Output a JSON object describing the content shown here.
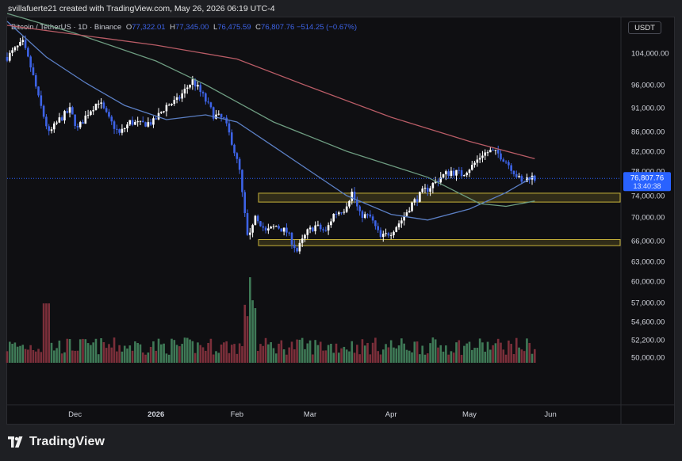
{
  "header": {
    "byline": "svillafuerte21 created with TradingView.com, May 26, 2026 06:19 UTC-4",
    "symbol_title": "Bitcoin / TetherUS · 1D · Binance",
    "ohlc": {
      "open_label": "O",
      "open": "77,322.01",
      "high_label": "H",
      "high": "77,345.00",
      "low_label": "L",
      "low": "76,475.59",
      "close_label": "C",
      "close": "76,807.76",
      "change": "−514.25 (−0.67%)"
    },
    "currency_button": "USDT"
  },
  "price_tag": {
    "price": "76,807.76",
    "countdown": "13:40:38",
    "color": "#2962ff"
  },
  "colors": {
    "up": "#ffffff",
    "down": "#3d63e6",
    "vol_up": "#3f7a57",
    "vol_down": "#7b2f3a",
    "ma_short": "#5b7fc4",
    "ma_mid": "#6d9b80",
    "ma_long": "#b95c66",
    "zone": "#c9b43a"
  },
  "brand": {
    "name": "TradingView",
    "logo_icon": "tradingview-logo-icon"
  },
  "chart_data": {
    "type": "candlestick",
    "title": "Bitcoin / TetherUS · 1D · Binance",
    "y_axis_ticks": [
      104000,
      96000,
      91000,
      86000,
      82000,
      78000,
      74000,
      70000,
      66000,
      63000,
      60000,
      57000,
      54600,
      52200,
      50000
    ],
    "y_tick_labels": [
      "104,000.00",
      "96,000.00",
      "91,000.00",
      "86,000.00",
      "82,000.00",
      "78,000.00",
      "74,000.00",
      "70,000.00",
      "66,000.00",
      "63,000.00",
      "60,000.00",
      "57,000.00",
      "54,600.00",
      "52,200.00",
      "50,000.00"
    ],
    "x_axis_labels": [
      {
        "label": "Dec",
        "date": "2025-12-01"
      },
      {
        "label": "2026",
        "date": "2026-01-01"
      },
      {
        "label": "Feb",
        "date": "2026-02-01"
      },
      {
        "label": "Mar",
        "date": "2026-03-01"
      },
      {
        "label": "Apr",
        "date": "2026-04-01"
      },
      {
        "label": "May",
        "date": "2026-05-01"
      },
      {
        "label": "Jun",
        "date": "2026-06-01"
      }
    ],
    "x_range": [
      "2025-11-05",
      "2026-06-28"
    ],
    "price_series": [
      {
        "date": "2025-11-05",
        "close": 103000
      },
      {
        "date": "2025-11-09",
        "close": 105500
      },
      {
        "date": "2025-11-11",
        "close": 106500
      },
      {
        "date": "2025-11-14",
        "close": 100500
      },
      {
        "date": "2025-11-17",
        "close": 93000
      },
      {
        "date": "2025-11-21",
        "close": 85500
      },
      {
        "date": "2025-11-25",
        "close": 88500
      },
      {
        "date": "2025-11-29",
        "close": 90500
      },
      {
        "date": "2025-12-02",
        "close": 86500
      },
      {
        "date": "2025-12-06",
        "close": 90000
      },
      {
        "date": "2025-12-10",
        "close": 92500
      },
      {
        "date": "2025-12-14",
        "close": 88500
      },
      {
        "date": "2025-12-18",
        "close": 85500
      },
      {
        "date": "2025-12-22",
        "close": 88000
      },
      {
        "date": "2025-12-26",
        "close": 87500
      },
      {
        "date": "2025-12-31",
        "close": 88000
      },
      {
        "date": "2026-01-05",
        "close": 91500
      },
      {
        "date": "2026-01-09",
        "close": 92500
      },
      {
        "date": "2026-01-13",
        "close": 95500
      },
      {
        "date": "2026-01-15",
        "close": 97000
      },
      {
        "date": "2026-01-19",
        "close": 93500
      },
      {
        "date": "2026-01-23",
        "close": 89500
      },
      {
        "date": "2026-01-27",
        "close": 88500
      },
      {
        "date": "2026-01-30",
        "close": 84000
      },
      {
        "date": "2026-02-02",
        "close": 78000
      },
      {
        "date": "2026-02-05",
        "close": 66500
      },
      {
        "date": "2026-02-08",
        "close": 70500
      },
      {
        "date": "2026-02-12",
        "close": 67500
      },
      {
        "date": "2026-02-16",
        "close": 68500
      },
      {
        "date": "2026-02-20",
        "close": 67500
      },
      {
        "date": "2026-02-24",
        "close": 64500
      },
      {
        "date": "2026-02-28",
        "close": 67500
      },
      {
        "date": "2026-03-03",
        "close": 68500
      },
      {
        "date": "2026-03-07",
        "close": 67500
      },
      {
        "date": "2026-03-10",
        "close": 70500
      },
      {
        "date": "2026-03-14",
        "close": 71500
      },
      {
        "date": "2026-03-17",
        "close": 74500
      },
      {
        "date": "2026-03-20",
        "close": 70500
      },
      {
        "date": "2026-03-24",
        "close": 70000
      },
      {
        "date": "2026-03-28",
        "close": 66500
      },
      {
        "date": "2026-04-01",
        "close": 67500
      },
      {
        "date": "2026-04-05",
        "close": 69500
      },
      {
        "date": "2026-04-09",
        "close": 72500
      },
      {
        "date": "2026-04-13",
        "close": 74500
      },
      {
        "date": "2026-04-16",
        "close": 75500
      },
      {
        "date": "2026-04-20",
        "close": 77000
      },
      {
        "date": "2026-04-24",
        "close": 78000
      },
      {
        "date": "2026-04-28",
        "close": 77500
      },
      {
        "date": "2026-05-02",
        "close": 79000
      },
      {
        "date": "2026-05-06",
        "close": 81500
      },
      {
        "date": "2026-05-09",
        "close": 82000
      },
      {
        "date": "2026-05-12",
        "close": 81500
      },
      {
        "date": "2026-05-15",
        "close": 80000
      },
      {
        "date": "2026-05-18",
        "close": 78000
      },
      {
        "date": "2026-05-21",
        "close": 76000
      },
      {
        "date": "2026-05-24",
        "close": 77200
      },
      {
        "date": "2026-05-26",
        "close": 76807.76
      }
    ],
    "moving_averages": [
      {
        "line": "short",
        "points": [
          {
            "date": "2025-11-05",
            "value": 112000
          },
          {
            "date": "2025-11-20",
            "value": 103000
          },
          {
            "date": "2025-12-05",
            "value": 96500
          },
          {
            "date": "2025-12-20",
            "value": 91500
          },
          {
            "date": "2026-01-05",
            "value": 88500
          },
          {
            "date": "2026-01-20",
            "value": 89500
          },
          {
            "date": "2026-02-01",
            "value": 88000
          },
          {
            "date": "2026-02-15",
            "value": 83000
          },
          {
            "date": "2026-03-01",
            "value": 78000
          },
          {
            "date": "2026-03-15",
            "value": 74000
          },
          {
            "date": "2026-04-01",
            "value": 70500
          },
          {
            "date": "2026-04-15",
            "value": 69500
          },
          {
            "date": "2026-05-01",
            "value": 71500
          },
          {
            "date": "2026-05-15",
            "value": 74500
          },
          {
            "date": "2026-05-26",
            "value": 77200
          }
        ]
      },
      {
        "line": "mid",
        "points": [
          {
            "date": "2025-11-05",
            "value": 114000
          },
          {
            "date": "2025-12-01",
            "value": 109000
          },
          {
            "date": "2026-01-01",
            "value": 102000
          },
          {
            "date": "2026-01-20",
            "value": 96000
          },
          {
            "date": "2026-02-15",
            "value": 88000
          },
          {
            "date": "2026-03-15",
            "value": 82000
          },
          {
            "date": "2026-04-15",
            "value": 77000
          },
          {
            "date": "2026-05-05",
            "value": 72500
          },
          {
            "date": "2026-05-15",
            "value": 72000
          },
          {
            "date": "2026-05-26",
            "value": 73000
          }
        ]
      },
      {
        "line": "long",
        "points": [
          {
            "date": "2025-11-05",
            "value": 111000
          },
          {
            "date": "2026-01-01",
            "value": 106000
          },
          {
            "date": "2026-02-01",
            "value": 102500
          },
          {
            "date": "2026-03-01",
            "value": 95500
          },
          {
            "date": "2026-04-01",
            "value": 89000
          },
          {
            "date": "2026-05-01",
            "value": 84000
          },
          {
            "date": "2026-05-26",
            "value": 80500
          }
        ]
      }
    ],
    "zones": [
      {
        "from": 72800,
        "to": 74400
      },
      {
        "from": 65300,
        "to": 66200
      }
    ],
    "volume": {
      "note_scale_max": 1.0,
      "spike_date": "2026-02-06"
    },
    "grid": false,
    "legend_position": "top-left"
  }
}
